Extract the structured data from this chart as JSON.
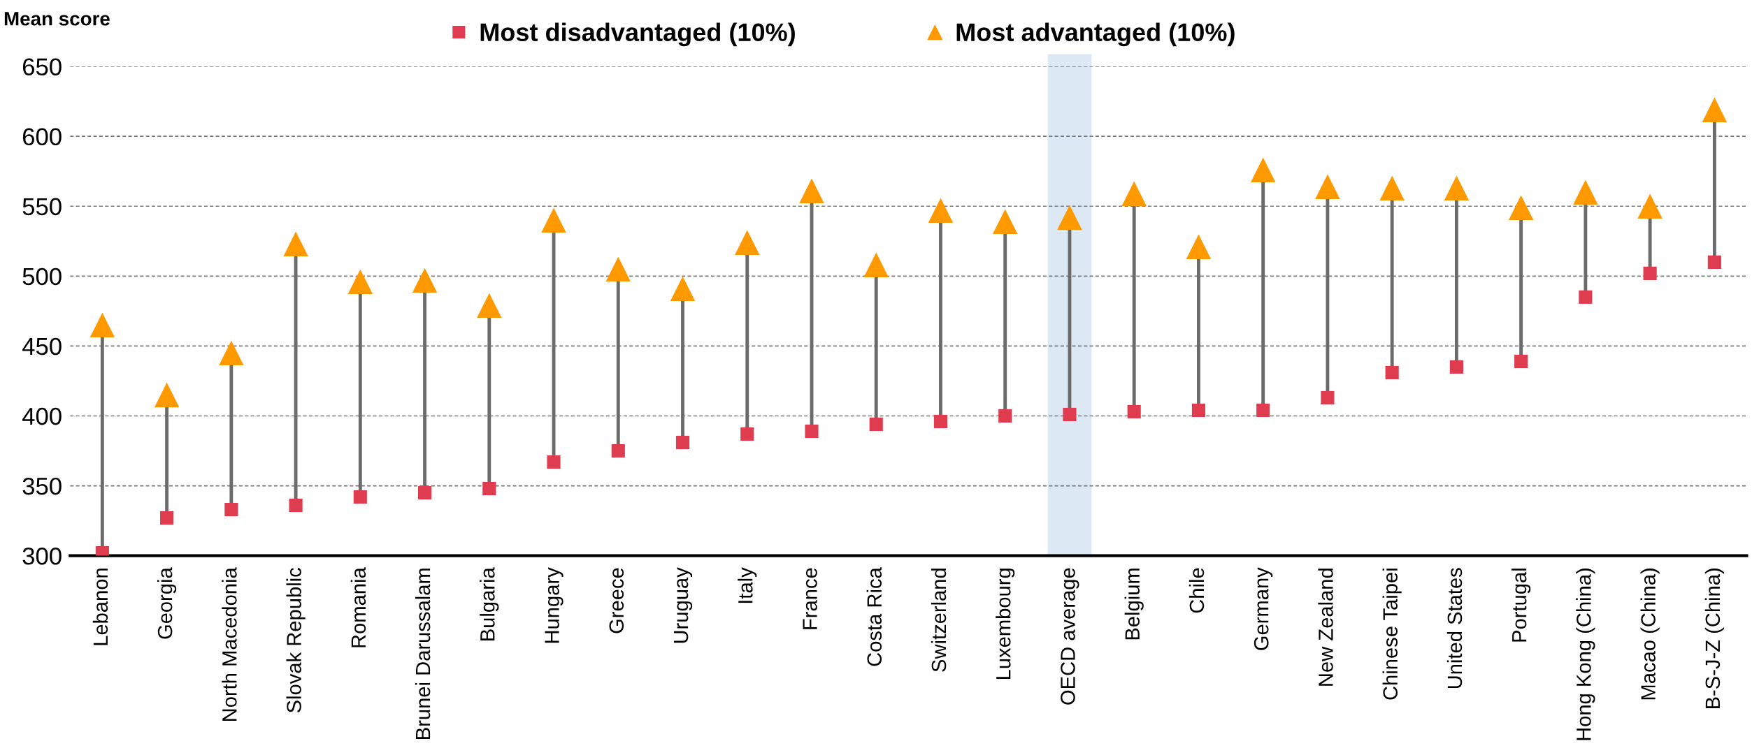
{
  "chart_data": {
    "type": "scatter",
    "ylabel": "Mean score",
    "categories": [
      "Lebanon",
      "Georgia",
      "North Macedonia",
      "Slovak Republic",
      "Romania",
      "Brunei Darussalam",
      "Bulgaria",
      "Hungary",
      "Greece",
      "Uruguay",
      "Italy",
      "France",
      "Costa Rica",
      "Switzerland",
      "Luxembourg",
      "OECD average",
      "Belgium",
      "Chile",
      "Germany",
      "New Zealand",
      "Chinese Taipei",
      "United States",
      "Portugal",
      "Hong Kong (China)",
      "Macao (China)",
      "B-S-J-Z (China)"
    ],
    "series": [
      {
        "name": "Most disadvantaged (10%)",
        "color": "#e03c50",
        "marker": "square",
        "values": [
          302,
          327,
          333,
          336,
          342,
          345,
          348,
          367,
          375,
          381,
          387,
          389,
          394,
          396,
          400,
          401,
          403,
          404,
          404,
          413,
          431,
          435,
          439,
          485,
          502,
          510
        ]
      },
      {
        "name": "Most advantaged (10%)",
        "color": "#ff9900",
        "marker": "triangle",
        "values": [
          465,
          415,
          445,
          523,
          496,
          497,
          479,
          540,
          505,
          491,
          524,
          561,
          508,
          547,
          539,
          542,
          559,
          521,
          576,
          564,
          563,
          563,
          549,
          560,
          550,
          619
        ]
      }
    ],
    "ylim": [
      300,
      650
    ],
    "yticks": [
      300,
      350,
      400,
      450,
      500,
      550,
      600,
      650
    ],
    "grid": "y",
    "legend": "top",
    "bands": [
      {
        "axis": "x",
        "from": "OECD average",
        "to": "OECD average",
        "color": "#dce8f4"
      }
    ]
  }
}
